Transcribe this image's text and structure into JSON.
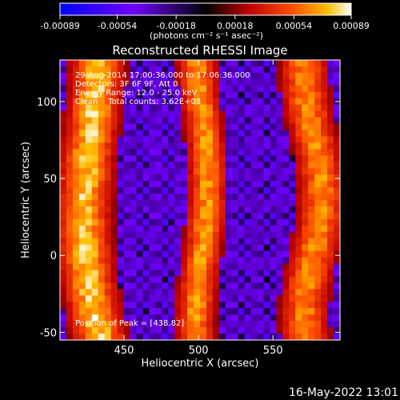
{
  "chart_data": {
    "type": "heatmap",
    "title": "Reconstructed RHESSI Image",
    "xlabel": "Heliocentric X (arcsec)",
    "ylabel": "Heliocentric Y (arcsec)",
    "xlim": [
      407,
      595
    ],
    "ylim": [
      -55,
      127
    ],
    "x_ticks": [
      "450",
      "500",
      "550"
    ],
    "x_tick_values": [
      450,
      500,
      550
    ],
    "y_ticks": [
      "-50",
      "0",
      "50",
      "100"
    ],
    "y_tick_values": [
      -50,
      0,
      50,
      100
    ],
    "colorbar": {
      "ticks": [
        "-0.00089",
        "-0.00054",
        "-0.00018",
        "0.00018",
        "0.00054",
        "0.00089"
      ],
      "tick_values": [
        -0.00089,
        -0.00054,
        -0.00018,
        0.00018,
        0.00054,
        0.00089
      ],
      "range": [
        -0.00089,
        0.00089
      ],
      "units_label": "(photons cm⁻² s⁻¹ asec⁻²)",
      "colors": [
        "#0000ff",
        "#8000ff",
        "#000000",
        "#c00000",
        "#ff6000",
        "#ffc000",
        "#ffffff"
      ]
    },
    "annotations": [
      "29-Aug-2014 17:00:36.000 to 17:06:36.000",
      "Detectors: 3F 6F 9F, Att 0",
      "Energy Range: 12.0 - 25.0 keV",
      "Clean    Total counts: 3.62E+03",
      "Position of Peak = [438,82]"
    ],
    "peak": {
      "x": 438,
      "y": 82
    },
    "bright_ridges": [
      {
        "name_visible": false,
        "approx_x": [
          415,
          450
        ],
        "approx_y": [
          -50,
          110
        ]
      },
      {
        "name_visible": false,
        "approx_x": [
          492,
          510
        ],
        "approx_y": [
          -40,
          90
        ]
      },
      {
        "name_visible": false,
        "approx_x": [
          565,
          590
        ],
        "approx_y": [
          -50,
          110
        ]
      }
    ]
  },
  "footer": {
    "date_stamp": "16-May-2022 13:01"
  }
}
